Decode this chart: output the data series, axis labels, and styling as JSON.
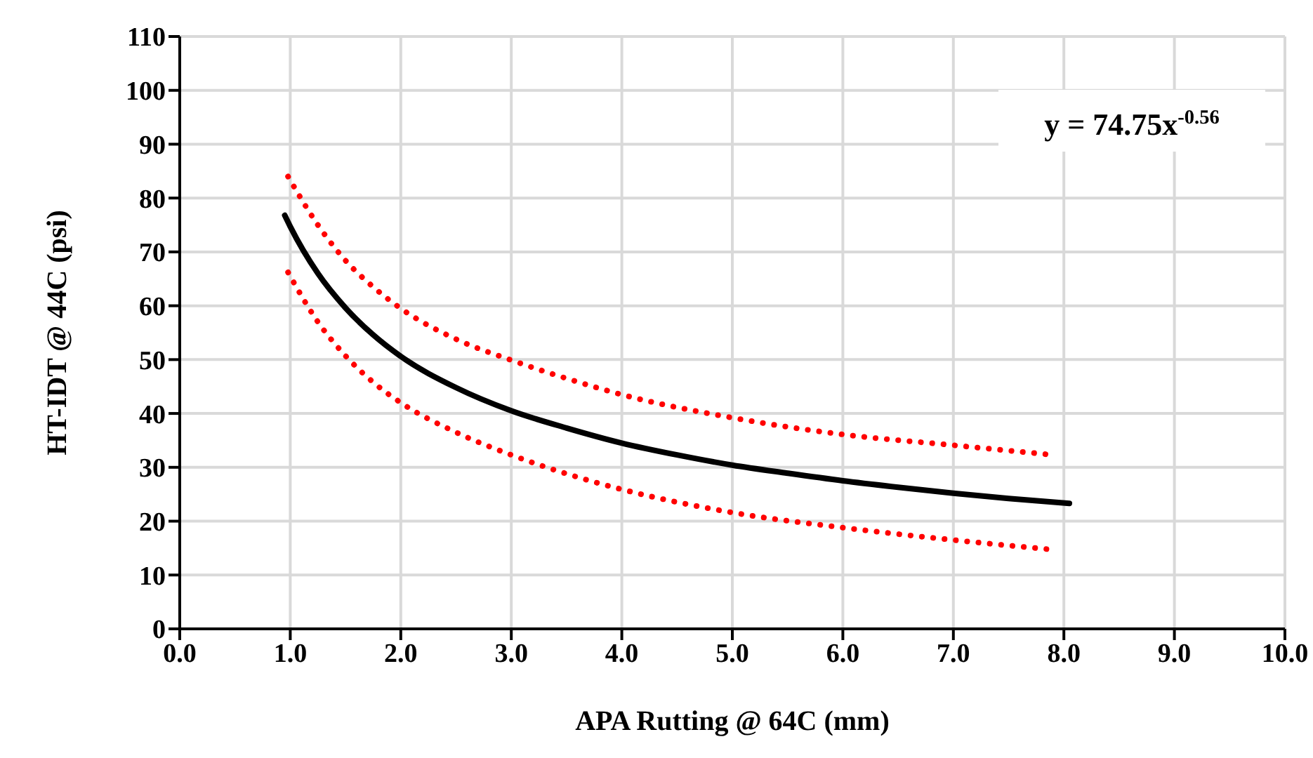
{
  "chart_data": {
    "type": "line",
    "xlabel": "APA Rutting @ 64C (mm)",
    "ylabel": "HT-IDT @ 44C (psi)",
    "xlim": [
      0,
      10
    ],
    "xticks": [
      {
        "value": 0,
        "label": "0.0"
      },
      {
        "value": 1,
        "label": "1.0"
      },
      {
        "value": 2,
        "label": "2.0"
      },
      {
        "value": 3,
        "label": "3.0"
      },
      {
        "value": 4,
        "label": "4.0"
      },
      {
        "value": 5,
        "label": "5.0"
      },
      {
        "value": 6,
        "label": "6.0"
      },
      {
        "value": 7,
        "label": "7.0"
      },
      {
        "value": 8,
        "label": "8.0"
      },
      {
        "value": 9,
        "label": "9.0"
      },
      {
        "value": 10,
        "label": "10.0"
      }
    ],
    "ylim": [
      0,
      110
    ],
    "yticks": [
      0,
      10,
      20,
      30,
      40,
      50,
      60,
      70,
      80,
      90,
      100,
      110
    ],
    "grid": true,
    "marker": "none",
    "annotations": [
      "y = 74.75x$^{-0.56}$"
    ],
    "series": [
      {
        "color": "#000000",
        "line_style": "solid",
        "x": [
          0.95,
          1.0,
          1.25,
          1.5,
          1.75,
          2.0,
          2.5,
          3.0,
          3.5,
          4.0,
          4.5,
          5.0,
          5.5,
          6.0,
          6.5,
          7.0,
          7.5,
          8.05
        ],
        "values": [
          76.8,
          74.7,
          66.0,
          59.6,
          54.6,
          50.6,
          44.8,
          40.5,
          37.3,
          34.5,
          32.3,
          30.4,
          28.9,
          27.5,
          26.3,
          25.2,
          24.2,
          23.3
        ]
      },
      {
        "color": "#ff0000",
        "line_style": "dotted",
        "x": [
          0.98,
          1.25,
          1.5,
          1.75,
          2.0,
          2.5,
          3.0,
          3.5,
          4.0,
          5.0,
          6.0,
          7.0,
          7.9
        ],
        "values": [
          84.0,
          75.0,
          68.4,
          63.5,
          59.5,
          53.8,
          49.9,
          46.5,
          43.5,
          39.2,
          36.1,
          34.1,
          32.3
        ]
      },
      {
        "color": "#ff0000",
        "line_style": "dotted",
        "x": [
          0.98,
          1.25,
          1.5,
          1.75,
          2.0,
          2.5,
          3.0,
          3.5,
          4.0,
          5.0,
          6.0,
          7.0,
          7.9
        ],
        "values": [
          66.2,
          57.0,
          50.7,
          45.8,
          42.0,
          36.5,
          32.3,
          28.8,
          25.9,
          21.6,
          18.8,
          16.5,
          14.7
        ]
      }
    ]
  }
}
